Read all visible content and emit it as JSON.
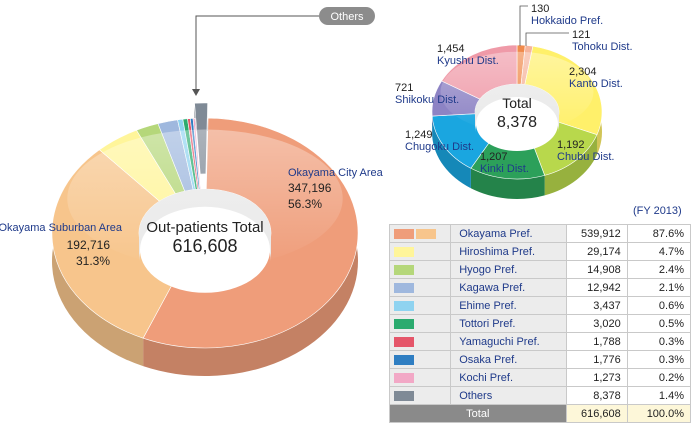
{
  "chart_data": [
    {
      "type": "pie",
      "center_label": "Out-patients Total",
      "center_value": "616,608",
      "slices": [
        {
          "label": "Okayama City Area",
          "value": 347196,
          "value_text": "347,196",
          "percent_text": "56.3%",
          "color": "#ef9d7a"
        },
        {
          "label": "Okayama Suburban Area",
          "value": 192716,
          "value_text": "192,716",
          "percent_text": "31.3%",
          "color": "#f7c58c"
        },
        {
          "label": "Hiroshima Pref.",
          "value": 29174,
          "color": "#fff59a"
        },
        {
          "label": "Hyogo Pref.",
          "value": 14908,
          "color": "#b5d77a"
        },
        {
          "label": "Kagawa Pref.",
          "value": 12942,
          "color": "#9fb8de"
        },
        {
          "label": "Ehime Pref.",
          "value": 3437,
          "color": "#8fd3f0"
        },
        {
          "label": "Tottori Pref.",
          "value": 3020,
          "color": "#2bab6f"
        },
        {
          "label": "Yamaguchi Pref.",
          "value": 1788,
          "color": "#e5566a"
        },
        {
          "label": "Osaka Pref.",
          "value": 1776,
          "color": "#2f7ec2"
        },
        {
          "label": "Kochi Pref.",
          "value": 1273,
          "color": "#f2a8c6"
        },
        {
          "label": "Others",
          "value": 8378,
          "color": "#7f8a96"
        }
      ],
      "callout": "Others"
    },
    {
      "type": "pie",
      "center_label": "Total",
      "center_value": "8,378",
      "slices": [
        {
          "label": "Hokkaido Pref.",
          "value": 130,
          "value_text": "130",
          "color": "#f08a4b"
        },
        {
          "label": "Tohoku Dist.",
          "value": 121,
          "value_text": "121",
          "color": "#f6b49c"
        },
        {
          "label": "Kanto Dist.",
          "value": 2304,
          "value_text": "2,304",
          "color": "#fff06a"
        },
        {
          "label": "Chubu Dist.",
          "value": 1192,
          "value_text": "1,192",
          "color": "#b8d84c"
        },
        {
          "label": "Kinki Dist.",
          "value": 1207,
          "value_text": "1,207",
          "color": "#2ca05a"
        },
        {
          "label": "Chugoku Dist.",
          "value": 1249,
          "value_text": "1,249",
          "color": "#1aa6e0"
        },
        {
          "label": "Shikoku Dist.",
          "value": 721,
          "value_text": "721",
          "color": "#8d83c4"
        },
        {
          "label": "Kyushu Dist.",
          "value": 1454,
          "value_text": "1,454",
          "color": "#ef9aa8"
        }
      ]
    },
    {
      "type": "table",
      "caption": "(FY 2013)",
      "rows": [
        {
          "name": "Okayama Pref.",
          "value": "539,912",
          "percent": "87.6%",
          "colors": [
            "#ef9d7a",
            "#f7c58c"
          ]
        },
        {
          "name": "Hiroshima Pref.",
          "value": "29,174",
          "percent": "4.7%",
          "colors": [
            "#fff59a"
          ]
        },
        {
          "name": "Hyogo Pref.",
          "value": "14,908",
          "percent": "2.4%",
          "colors": [
            "#b5d77a"
          ]
        },
        {
          "name": "Kagawa Pref.",
          "value": "12,942",
          "percent": "2.1%",
          "colors": [
            "#9fb8de"
          ]
        },
        {
          "name": "Ehime Pref.",
          "value": "3,437",
          "percent": "0.6%",
          "colors": [
            "#8fd3f0"
          ]
        },
        {
          "name": "Tottori Pref.",
          "value": "3,020",
          "percent": "0.5%",
          "colors": [
            "#2bab6f"
          ]
        },
        {
          "name": "Yamaguchi Pref.",
          "value": "1,788",
          "percent": "0.3%",
          "colors": [
            "#e5566a"
          ]
        },
        {
          "name": "Osaka Pref.",
          "value": "1,776",
          "percent": "0.3%",
          "colors": [
            "#2f7ec2"
          ]
        },
        {
          "name": "Kochi Pref.",
          "value": "1,273",
          "percent": "0.2%",
          "colors": [
            "#f2a8c6"
          ]
        },
        {
          "name": "Others",
          "value": "8,378",
          "percent": "1.4%",
          "colors": [
            "#7f8a96"
          ]
        }
      ],
      "total": {
        "name": "Total",
        "value": "616,608",
        "percent": "100.0%"
      }
    }
  ]
}
